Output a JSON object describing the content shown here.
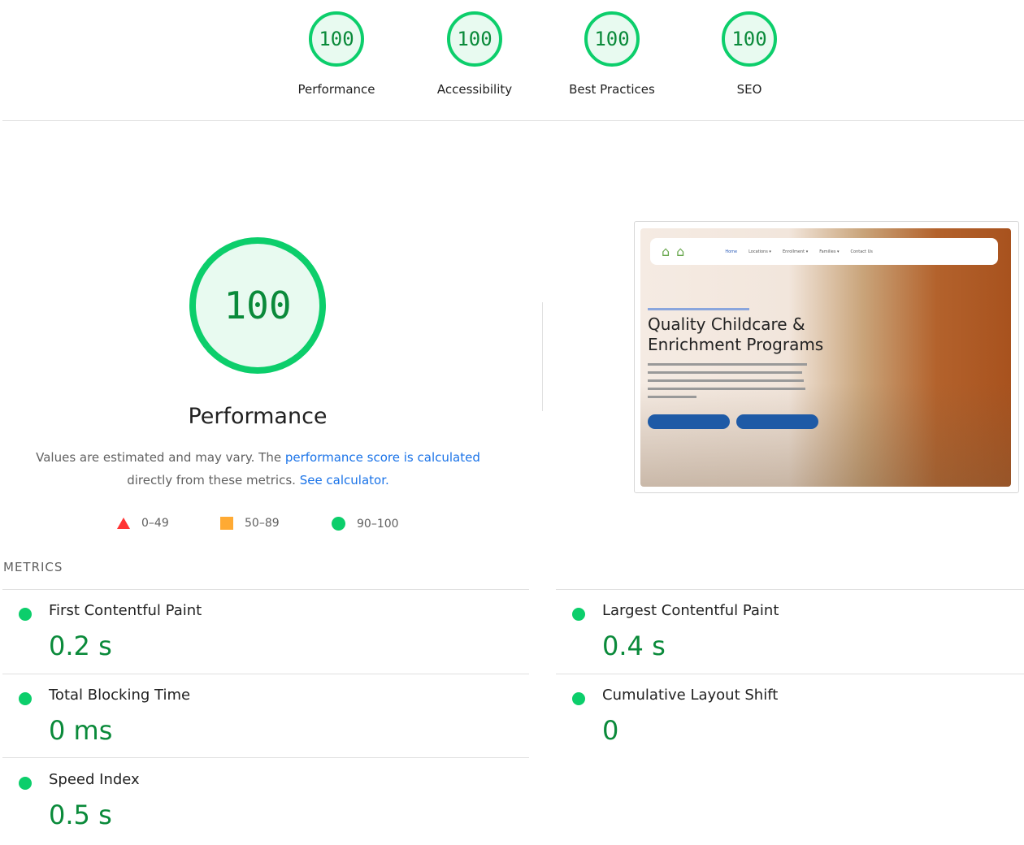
{
  "categories": [
    {
      "label": "Performance",
      "score": "100"
    },
    {
      "label": "Accessibility",
      "score": "100"
    },
    {
      "label": "Best Practices",
      "score": "100"
    },
    {
      "label": "SEO",
      "score": "100"
    }
  ],
  "performance": {
    "score": "100",
    "title": "Performance",
    "desc_1": "Values are estimated and may vary. The ",
    "desc_link_1": "performance score is calculated",
    "desc_2": "directly from these metrics. ",
    "desc_link_2": "See calculator.",
    "legend": [
      {
        "range": "0–49",
        "color": "#ff3333",
        "shape": "triangle"
      },
      {
        "range": "50–89",
        "color": "#ffaa33",
        "shape": "square"
      },
      {
        "range": "90–100",
        "color": "#0cce6b",
        "shape": "circle"
      }
    ]
  },
  "screenshot": {
    "nav": [
      "Home",
      "Locations ▾",
      "Enrollment ▾",
      "Families ▾",
      "Contact Us"
    ],
    "heading": "Quality Childcare & Enrichment Programs"
  },
  "metrics_header": "METRICS",
  "metrics": [
    {
      "name": "First Contentful Paint",
      "value": "0.2 s"
    },
    {
      "name": "Largest Contentful Paint",
      "value": "0.4 s"
    },
    {
      "name": "Total Blocking Time",
      "value": "0 ms"
    },
    {
      "name": "Cumulative Layout Shift",
      "value": "0"
    },
    {
      "name": "Speed Index",
      "value": "0.5 s"
    }
  ],
  "colors": {
    "pass": "#0cce6b",
    "pass_text": "#0a8a3a",
    "link": "#1a73e8"
  }
}
